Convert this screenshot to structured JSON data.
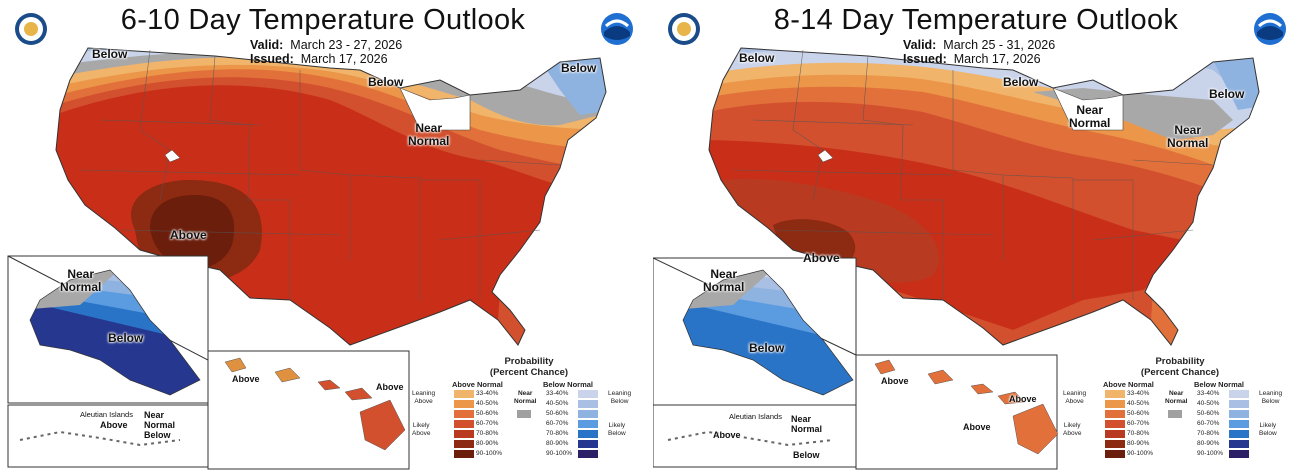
{
  "panels": [
    {
      "title": "6-10 Day Temperature Outlook",
      "valid_label": "Valid:",
      "valid_value": "March 23 - 27, 2026",
      "issued_label": "Issued:",
      "issued_value": "March 17, 2026",
      "region_labels": {
        "below_nw": "Below",
        "below_n": "Below",
        "below_ne": "Below",
        "near_normal": "Near\nNormal",
        "above": "Above",
        "ak_near_normal": "Near\nNormal",
        "ak_below": "Below",
        "hi_above_w": "Above",
        "hi_above_e": "Above",
        "aleutian_islands": "Aleutian Islands",
        "aleut_above": "Above",
        "aleut_near_normal": "Near\nNormal",
        "aleut_below": "Below"
      }
    },
    {
      "title": "8-14 Day Temperature Outlook",
      "valid_label": "Valid:",
      "valid_value": "March 25 - 31, 2026",
      "issued_label": "Issued:",
      "issued_value": "March 17, 2026",
      "region_labels": {
        "below_nw": "Below",
        "below_n": "Below",
        "below_ne": "Below",
        "near_normal_mw": "Near\nNormal",
        "near_normal_ne": "Near\nNormal",
        "above": "Above",
        "ak_near_normal": "Near\nNormal",
        "ak_below": "Below",
        "hi_above_w": "Above",
        "hi_above_e": "Above",
        "hi_above_s": "Above",
        "aleutian_islands": "Aleutian Islands",
        "aleut_above": "Above",
        "aleut_near_normal": "Near\nNormal",
        "aleut_below": "Below"
      }
    }
  ],
  "legend": {
    "title": "Probability\n(Percent Chance)",
    "above_header": "Above Normal",
    "below_header": "Below Normal",
    "near_normal": "Near\nNormal",
    "leaning_above": "Leaning\nAbove",
    "likely_above": "Likely\nAbove",
    "leaning_below": "Leaning\nBelow",
    "likely_below": "Likely\nBelow",
    "ranges": [
      "33-40%",
      "40-50%",
      "50-60%",
      "60-70%",
      "70-80%",
      "80-90%",
      "90-100%"
    ],
    "above_colors": [
      "#f1b46b",
      "#eb9649",
      "#e2703a",
      "#d2502e",
      "#b83a20",
      "#8c2a12",
      "#6b1e0c"
    ],
    "below_colors": [
      "#c9d3ea",
      "#a9bfe3",
      "#8fb3e0",
      "#5b9be0",
      "#2a74c8",
      "#25378f",
      "#2b1f66"
    ],
    "near_color": "#a0a0a0"
  }
}
